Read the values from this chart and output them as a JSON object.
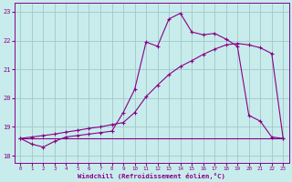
{
  "xlabel": "Windchill (Refroidissement éolien,°C)",
  "xlim": [
    -0.5,
    23.5
  ],
  "ylim": [
    17.75,
    23.3
  ],
  "yticks": [
    18,
    19,
    20,
    21,
    22,
    23
  ],
  "xticks": [
    0,
    1,
    2,
    3,
    4,
    5,
    6,
    7,
    8,
    9,
    10,
    11,
    12,
    13,
    14,
    15,
    16,
    17,
    18,
    19,
    20,
    21,
    22,
    23
  ],
  "bg_color": "#c8ecec",
  "grid_color": "#a0c8c8",
  "line_color": "#880088",
  "curve1_x": [
    0,
    1,
    2,
    3,
    4,
    5,
    6,
    7,
    8,
    9,
    10,
    11,
    12,
    13,
    14,
    15,
    16,
    17,
    18,
    19,
    20,
    21,
    22,
    23
  ],
  "curve1_y": [
    18.6,
    18.4,
    18.3,
    18.5,
    18.65,
    18.7,
    18.75,
    18.8,
    18.85,
    19.5,
    20.3,
    21.95,
    21.8,
    22.75,
    22.95,
    22.3,
    22.2,
    22.25,
    22.05,
    21.8,
    19.4,
    19.2,
    18.65,
    18.6
  ],
  "curve2_x": [
    0,
    1,
    2,
    3,
    4,
    5,
    6,
    7,
    8,
    9,
    10,
    11,
    12,
    13,
    14,
    15,
    16,
    17,
    18,
    19,
    20,
    21,
    22,
    23
  ],
  "curve2_y": [
    18.6,
    18.65,
    18.7,
    18.75,
    18.82,
    18.88,
    18.95,
    19.0,
    19.08,
    19.15,
    19.5,
    20.05,
    20.45,
    20.82,
    21.1,
    21.3,
    21.52,
    21.7,
    21.85,
    21.9,
    21.85,
    21.75,
    21.55,
    18.6
  ],
  "curve3_x": [
    0,
    9,
    10,
    15,
    22,
    23
  ],
  "curve3_y": [
    18.6,
    18.6,
    18.6,
    18.6,
    18.6,
    18.6
  ]
}
